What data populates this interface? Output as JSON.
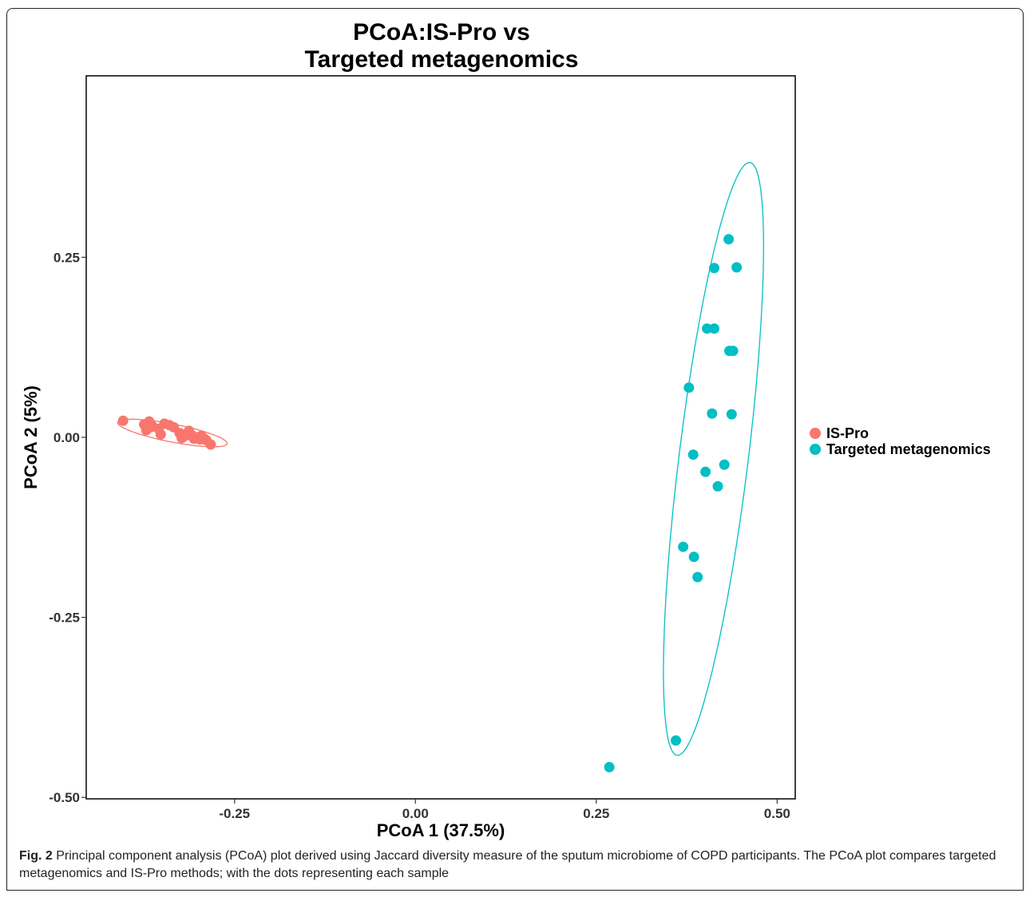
{
  "chart_data": {
    "type": "scatter",
    "title_lines": [
      "PCoA:IS-Pro vs",
      "Targeted metagenomics"
    ],
    "xlabel": "PCoA 1 (37.5%)",
    "ylabel": "PCoA 2 (5%)",
    "xlim": [
      -0.455,
      0.525
    ],
    "ylim": [
      -0.502,
      0.502
    ],
    "x_ticks": [
      -0.25,
      0.0,
      0.25,
      0.5
    ],
    "x_tick_labels": [
      "-0.25",
      "0.00",
      "0.25",
      "0.50"
    ],
    "y_ticks": [
      -0.5,
      -0.25,
      0.0,
      0.25
    ],
    "y_tick_labels": [
      "-0.50",
      "-0.25",
      "0.00",
      "0.25"
    ],
    "grid": false,
    "legend_position": "right",
    "series": [
      {
        "name": "IS-Pro",
        "color": "#f8766d",
        "points": [
          [
            -0.404,
            0.023
          ],
          [
            -0.375,
            0.018
          ],
          [
            -0.372,
            0.01
          ],
          [
            -0.368,
            0.022
          ],
          [
            -0.364,
            0.016
          ],
          [
            -0.355,
            0.012
          ],
          [
            -0.352,
            0.004
          ],
          [
            -0.347,
            0.019
          ],
          [
            -0.34,
            0.017
          ],
          [
            -0.334,
            0.014
          ],
          [
            -0.326,
            0.006
          ],
          [
            -0.323,
            -0.001
          ],
          [
            -0.318,
            0.002
          ],
          [
            -0.313,
            0.009
          ],
          [
            -0.309,
            0.003
          ],
          [
            -0.306,
            -0.002
          ],
          [
            -0.302,
            0.0
          ],
          [
            -0.298,
            -0.003
          ],
          [
            -0.293,
            -0.001
          ],
          [
            -0.289,
            -0.004
          ],
          [
            -0.283,
            -0.01
          ],
          [
            -0.296,
            0.002
          ],
          [
            -0.321,
            0.004
          ],
          [
            -0.366,
            0.014
          ]
        ],
        "ellipse": {
          "center": [
            -0.336,
            0.006
          ],
          "rx": 0.077,
          "ry": 0.0125,
          "angle_deg": -11
        }
      },
      {
        "name": "Targeted metagenomics",
        "color": "#00bfc4",
        "points": [
          [
            0.433,
            0.275
          ],
          [
            0.413,
            0.235
          ],
          [
            0.444,
            0.236
          ],
          [
            0.403,
            0.151
          ],
          [
            0.413,
            0.151
          ],
          [
            0.434,
            0.12
          ],
          [
            0.439,
            0.12
          ],
          [
            0.378,
            0.069
          ],
          [
            0.41,
            0.033
          ],
          [
            0.437,
            0.032
          ],
          [
            0.384,
            -0.024
          ],
          [
            0.427,
            -0.038
          ],
          [
            0.401,
            -0.048
          ],
          [
            0.418,
            -0.068
          ],
          [
            0.37,
            -0.152
          ],
          [
            0.385,
            -0.166
          ],
          [
            0.39,
            -0.194
          ],
          [
            0.36,
            -0.421
          ],
          [
            0.268,
            -0.458
          ]
        ],
        "ellipse": {
          "center": [
            0.412,
            -0.03
          ],
          "rx": 0.413,
          "ry": 0.048,
          "angle_deg": 83
        }
      }
    ]
  },
  "caption": {
    "fig_label": "Fig. 2",
    "text": "Principal component analysis (PCoA) plot derived using Jaccard diversity measure of the sputum microbiome of COPD participants. The PCoA plot compares targeted metagenomics and IS-Pro methods; with the dots representing each sample"
  }
}
